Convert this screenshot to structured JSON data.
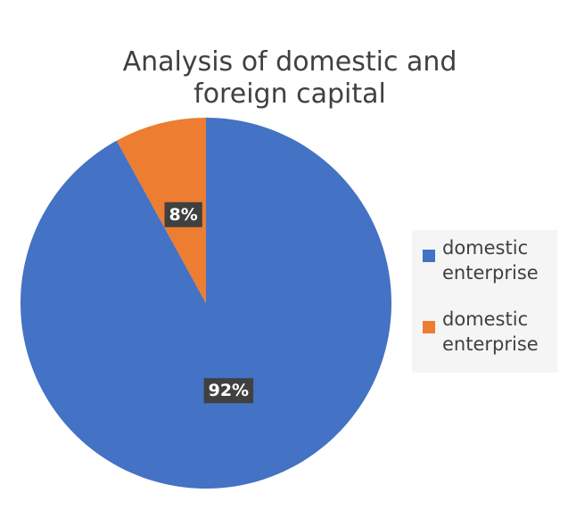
{
  "chart_data": {
    "type": "pie",
    "title": "Analysis of domestic and foreign capital",
    "categories": [
      "domestic enterprise",
      "domestic enterprise"
    ],
    "values": [
      92,
      8
    ],
    "value_labels": [
      "92%",
      "8%"
    ],
    "colors": [
      "#4472c4",
      "#ed7d31"
    ],
    "legend": "right"
  }
}
